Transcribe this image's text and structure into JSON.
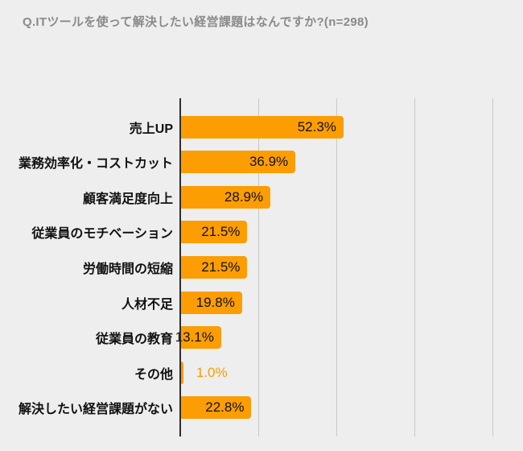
{
  "header": {
    "title": "Q.ITツールを使って解決したい経営課題はなんですか?(n=298)"
  },
  "chart_data": {
    "type": "bar",
    "orientation": "horizontal",
    "title": "Q.ITツールを使って解決したい経営課題はなんですか?(n=298)",
    "categories": [
      "売上UP",
      "業務効率化・コストカット",
      "顧客満足度向上",
      "従業員のモチベーション",
      "労働時間の短縮",
      "人材不足",
      "従業員の教育",
      "その他",
      "解決したい経営課題がない"
    ],
    "values": [
      52.3,
      36.9,
      28.9,
      21.5,
      21.5,
      19.8,
      13.1,
      1.0,
      22.8
    ],
    "value_labels": [
      "52.3%",
      "36.9%",
      "28.9%",
      "21.5%",
      "21.5%",
      "19.8%",
      "13.1%",
      "1.0%",
      "22.8%"
    ],
    "xlabel": "",
    "ylabel": "",
    "xlim": [
      0,
      100
    ],
    "gridlines": [
      0,
      25,
      50,
      75,
      100
    ],
    "grid": true,
    "legend": false,
    "inside_label_min_value": 10,
    "colors": {
      "bar": "#FC9D03",
      "value_label_inside": "#111111",
      "value_label_outside": "#F99B06",
      "category_label": "#111111",
      "background": "#EEEEEE",
      "title": "#8A8A8A",
      "axis_line": "#2E2E2E",
      "grid_line": "#C9C9C9"
    }
  }
}
